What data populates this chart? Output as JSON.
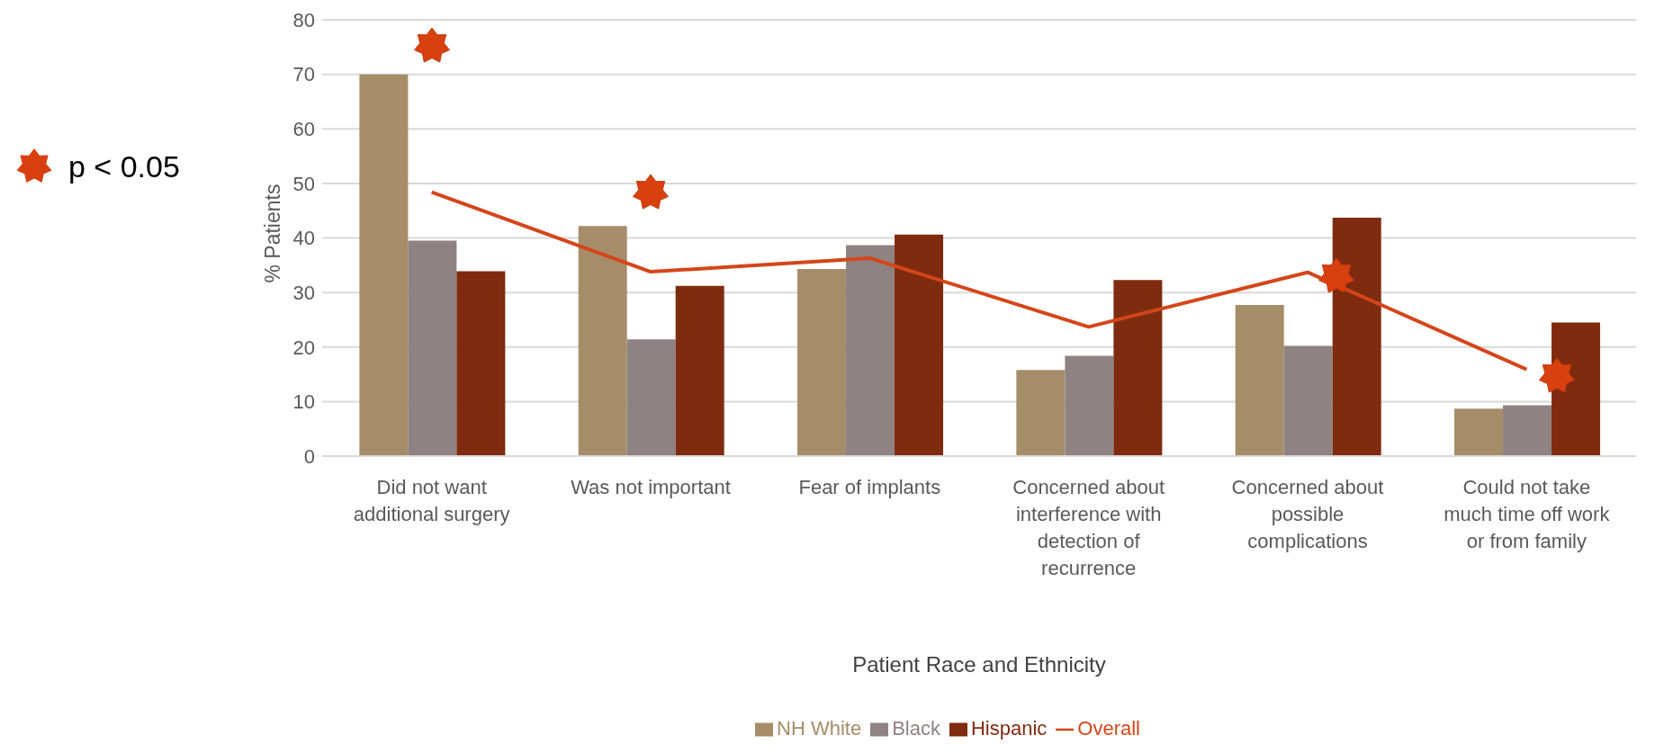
{
  "chart_data": {
    "type": "bar",
    "xlabel": "Patient Race and Ethnicity",
    "ylabel": "% Patients",
    "categories": [
      "Did not want additional surgery",
      "Was not important",
      "Fear of implants",
      "Concerned about interference with detection of recurrence",
      "Concerned about possible complications",
      "Could not take much time off work or from family"
    ],
    "series": [
      {
        "name": "NH White",
        "color": "#a58d69",
        "values": [
          70,
          42.2,
          34.3,
          15.8,
          27.7,
          8.7
        ]
      },
      {
        "name": "Black",
        "color": "#8f8282",
        "values": [
          39.5,
          21.4,
          38.7,
          18.4,
          20.2,
          9.3
        ]
      },
      {
        "name": "Hispanic",
        "color": "#7f2b10",
        "values": [
          33.9,
          31.2,
          40.6,
          32.3,
          43.7,
          24.5
        ]
      },
      {
        "name": "Overall",
        "type": "line",
        "color": "#d4461a",
        "values": [
          48.4,
          33.8,
          36.3,
          23.7,
          33.7,
          15.9
        ]
      }
    ],
    "ylim": [
      0,
      80
    ],
    "yticks": [
      0,
      10,
      20,
      30,
      40,
      50,
      60,
      70,
      80
    ],
    "grid": "y",
    "legend": "bottom",
    "marker": "none",
    "line_style": "solid",
    "annotations": [
      "p < 0.05"
    ]
  }
}
